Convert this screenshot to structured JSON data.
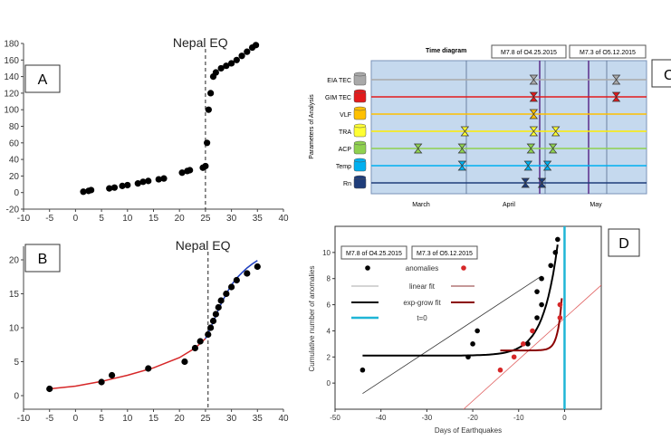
{
  "chart_data": [
    {
      "id": "A",
      "type": "scatter",
      "panel_label": "A",
      "annotation": "Nepal EQ",
      "xlim": [
        -10,
        40
      ],
      "ylim": [
        -20,
        180
      ],
      "xticks": [
        -10,
        -5,
        0,
        5,
        10,
        15,
        20,
        25,
        30,
        35,
        40
      ],
      "yticks": [
        -20,
        0,
        20,
        40,
        60,
        80,
        100,
        120,
        140,
        160,
        180
      ],
      "event_x": 25,
      "series": [
        {
          "values": [
            [
              1.5,
              1
            ],
            [
              2.5,
              2
            ],
            [
              3,
              3
            ],
            [
              6.5,
              5
            ],
            [
              7.5,
              6
            ],
            [
              9,
              8
            ],
            [
              10,
              9
            ],
            [
              12,
              11
            ],
            [
              13,
              13
            ],
            [
              14,
              14
            ],
            [
              16,
              16
            ],
            [
              17,
              17
            ],
            [
              20.5,
              24
            ],
            [
              21.5,
              26
            ],
            [
              22,
              27
            ],
            [
              24.5,
              30
            ],
            [
              25,
              32
            ],
            [
              25.3,
              60
            ],
            [
              25.6,
              100
            ],
            [
              26,
              120
            ],
            [
              26.5,
              140
            ],
            [
              27,
              145
            ],
            [
              28,
              150
            ],
            [
              29,
              153
            ],
            [
              30,
              156
            ],
            [
              31,
              160
            ],
            [
              32,
              165
            ],
            [
              33,
              170
            ],
            [
              34,
              175
            ],
            [
              34.7,
              178
            ]
          ]
        }
      ]
    },
    {
      "id": "B",
      "type": "scatter",
      "panel_label": "B",
      "annotation": "Nepal EQ",
      "xlim": [
        -10,
        40
      ],
      "ylim": [
        -2,
        22
      ],
      "xticks": [
        -10,
        -5,
        0,
        5,
        10,
        15,
        20,
        25,
        30,
        35,
        40
      ],
      "yticks": [
        0,
        5,
        10,
        15,
        20
      ],
      "event_x": 25.5,
      "series": [
        {
          "values": [
            [
              -5,
              1
            ],
            [
              5,
              2
            ],
            [
              7,
              3
            ],
            [
              14,
              4
            ],
            [
              21,
              5
            ],
            [
              23,
              7
            ],
            [
              24,
              8
            ],
            [
              25.5,
              9
            ],
            [
              26,
              10
            ],
            [
              26.5,
              11
            ],
            [
              27,
              12
            ],
            [
              27.5,
              13
            ],
            [
              28,
              14
            ],
            [
              29,
              15
            ],
            [
              30,
              16
            ],
            [
              31,
              17
            ],
            [
              33,
              18
            ],
            [
              35,
              19
            ]
          ]
        }
      ],
      "fit_red": [
        [
          -5,
          1
        ],
        [
          0,
          1.4
        ],
        [
          5,
          2.1
        ],
        [
          10,
          3
        ],
        [
          15,
          4.1
        ],
        [
          20,
          5.6
        ],
        [
          23,
          7
        ],
        [
          25,
          8.4
        ]
      ],
      "fit_blue": [
        [
          25,
          8.4
        ],
        [
          26,
          10
        ],
        [
          27,
          11.8
        ],
        [
          28,
          13.5
        ],
        [
          29,
          15
        ],
        [
          30,
          16.3
        ],
        [
          31,
          17.3
        ],
        [
          32,
          18.1
        ],
        [
          33,
          18.8
        ],
        [
          34,
          19.4
        ],
        [
          35,
          19.9
        ]
      ]
    },
    {
      "id": "C",
      "type": "timeline",
      "panel_label": "C",
      "title": "Time diagram",
      "legend": [
        "M7.8 of O4.25.2015",
        "M7.3 of O5.12.2015"
      ],
      "ylabel": "Parameters of Analysis",
      "rows": [
        "EIA TEC",
        "GIM TEC",
        "VLF",
        "TRA",
        "ACP",
        "Temp",
        "Rn"
      ],
      "row_colors": [
        "#a9a9a9",
        "#e31a1c",
        "#ffc000",
        "#ffff33",
        "#8fd14f",
        "#00b0f0",
        "#1f3d7a"
      ],
      "months": [
        "March",
        "April",
        "May"
      ],
      "markers": [
        {
          "row": "EIA TEC",
          "pos": [
            0.59,
            0.89
          ]
        },
        {
          "row": "GIM TEC",
          "pos": [
            0.59,
            0.89
          ]
        },
        {
          "row": "VLF",
          "pos": [
            0.59
          ]
        },
        {
          "row": "TRA",
          "pos": [
            0.34,
            0.59,
            0.67
          ]
        },
        {
          "row": "ACP",
          "pos": [
            0.17,
            0.33,
            0.58,
            0.66
          ]
        },
        {
          "row": "Temp",
          "pos": [
            0.33,
            0.57,
            0.64
          ]
        },
        {
          "row": "Rn",
          "pos": [
            0.56,
            0.62
          ]
        }
      ]
    },
    {
      "id": "D",
      "type": "scatter",
      "panel_label": "D",
      "legend": [
        "M7.8 of O4.25.2015",
        "M7.3 of O5.12.2015"
      ],
      "legend_items": {
        "anomalies": "anomalies",
        "linear": "linear  fit",
        "exp": "exp-grow fit",
        "t0": "t=0"
      },
      "xlabel": "Days of Earthquakes",
      "ylabel": "Cumulative number of anomalies",
      "xlim": [
        -50,
        8
      ],
      "ylim": [
        -2,
        12
      ],
      "xticks": [
        -50,
        -40,
        -30,
        -20,
        -10,
        0
      ],
      "yticks": [
        0,
        2,
        4,
        6,
        8,
        10
      ],
      "series": [
        {
          "name": "anomalies",
          "color": "#000000",
          "values": [
            [
              -44,
              1
            ],
            [
              -20,
              3
            ],
            [
              -19,
              4
            ],
            [
              -21,
              2
            ],
            [
              -8,
              3
            ],
            [
              -6,
              5
            ],
            [
              -5,
              6
            ],
            [
              -6,
              7
            ],
            [
              -5,
              8
            ],
            [
              -3,
              9
            ],
            [
              -2,
              10
            ],
            [
              -1.5,
              11
            ]
          ]
        },
        {
          "name": "anomalies",
          "color": "#d62728",
          "values": [
            [
              -14,
              1
            ],
            [
              -11,
              2
            ],
            [
              -9,
              3
            ],
            [
              -7,
              4
            ],
            [
              -1,
              5
            ],
            [
              -1,
              6
            ]
          ]
        }
      ]
    }
  ]
}
